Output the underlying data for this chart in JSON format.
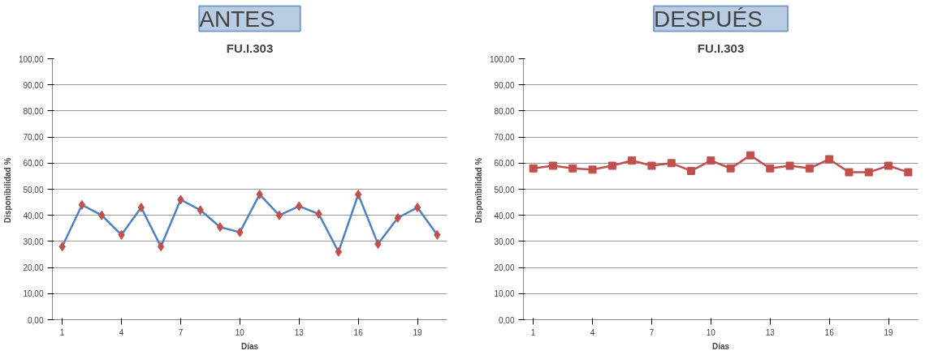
{
  "chart_data": [
    {
      "type": "line",
      "title": "FU.I.303",
      "annotations": [
        "ANTES"
      ],
      "xlabel": "Días",
      "ylabel": "Disponibilidad  %",
      "x": [
        1,
        2,
        3,
        4,
        5,
        6,
        7,
        8,
        9,
        10,
        11,
        12,
        13,
        14,
        15,
        16,
        17,
        18,
        19,
        20
      ],
      "series": [
        {
          "color": "#4f81bd",
          "colors": [
            "#c0504d",
            "#c0504d",
            "#c0504d",
            "#c0504d",
            "#c0504d",
            "#c0504d",
            "#c0504d",
            "#c0504d",
            "#c0504d",
            "#c0504d",
            "#c0504d",
            "#c0504d",
            "#c0504d",
            "#c0504d",
            "#c0504d",
            "#c0504d",
            "#c0504d",
            "#c0504d",
            "#c0504d",
            "#c0504d"
          ],
          "values": [
            28,
            44,
            40,
            32.5,
            43,
            28,
            46,
            42,
            35.5,
            33.5,
            48,
            40,
            43.5,
            40.5,
            26,
            48,
            29,
            39,
            43,
            32.5
          ]
        }
      ],
      "xlim": [
        0.5,
        20.5
      ],
      "xticks": [
        1,
        4,
        7,
        10,
        13,
        16,
        19
      ],
      "ylim": [
        0,
        100
      ],
      "yticks": [
        {
          "value": 0,
          "label": "0,00"
        },
        {
          "value": 10,
          "label": "10,00"
        },
        {
          "value": 20,
          "label": "20,00"
        },
        {
          "value": 30,
          "label": "30,00"
        },
        {
          "value": 40,
          "label": "40,00"
        },
        {
          "value": 50,
          "label": "50,00"
        },
        {
          "value": 60,
          "label": "60,00"
        },
        {
          "value": 70,
          "label": "70,00"
        },
        {
          "value": 80,
          "label": "80,00"
        },
        {
          "value": 90,
          "label": "90,00"
        },
        {
          "value": 100,
          "label": "100,00"
        }
      ],
      "grid": "y",
      "marker": "diamond",
      "line_style": "solid"
    },
    {
      "type": "line",
      "title": "FU.I.303",
      "annotations": [
        "DESPUÉS"
      ],
      "xlabel": "Días",
      "ylabel": "Disponibilidad  %",
      "x": [
        1,
        2,
        3,
        4,
        5,
        6,
        7,
        8,
        9,
        10,
        11,
        12,
        13,
        14,
        15,
        16,
        17,
        18,
        19,
        20
      ],
      "series": [
        {
          "color": "#c0504d",
          "values": [
            58,
            59,
            58,
            57.5,
            59,
            61,
            59,
            60,
            57,
            61,
            58,
            63,
            58,
            59,
            58,
            61.5,
            56.5,
            56.5,
            59,
            56.5
          ]
        }
      ],
      "xlim": [
        0.5,
        20.5
      ],
      "xticks": [
        1,
        4,
        7,
        10,
        13,
        16,
        19
      ],
      "ylim": [
        0,
        100
      ],
      "yticks": [
        {
          "value": 0,
          "label": "0,00"
        },
        {
          "value": 10,
          "label": "10,00"
        },
        {
          "value": 20,
          "label": "20,00"
        },
        {
          "value": 30,
          "label": "30,00"
        },
        {
          "value": 40,
          "label": "40,00"
        },
        {
          "value": 50,
          "label": "50,00"
        },
        {
          "value": 60,
          "label": "60,00"
        },
        {
          "value": 70,
          "label": "70,00"
        },
        {
          "value": 80,
          "label": "80,00"
        },
        {
          "value": 90,
          "label": "90,00"
        },
        {
          "value": 100,
          "label": "100,00"
        }
      ],
      "grid": "y",
      "marker": "square",
      "line_style": "solid"
    }
  ]
}
